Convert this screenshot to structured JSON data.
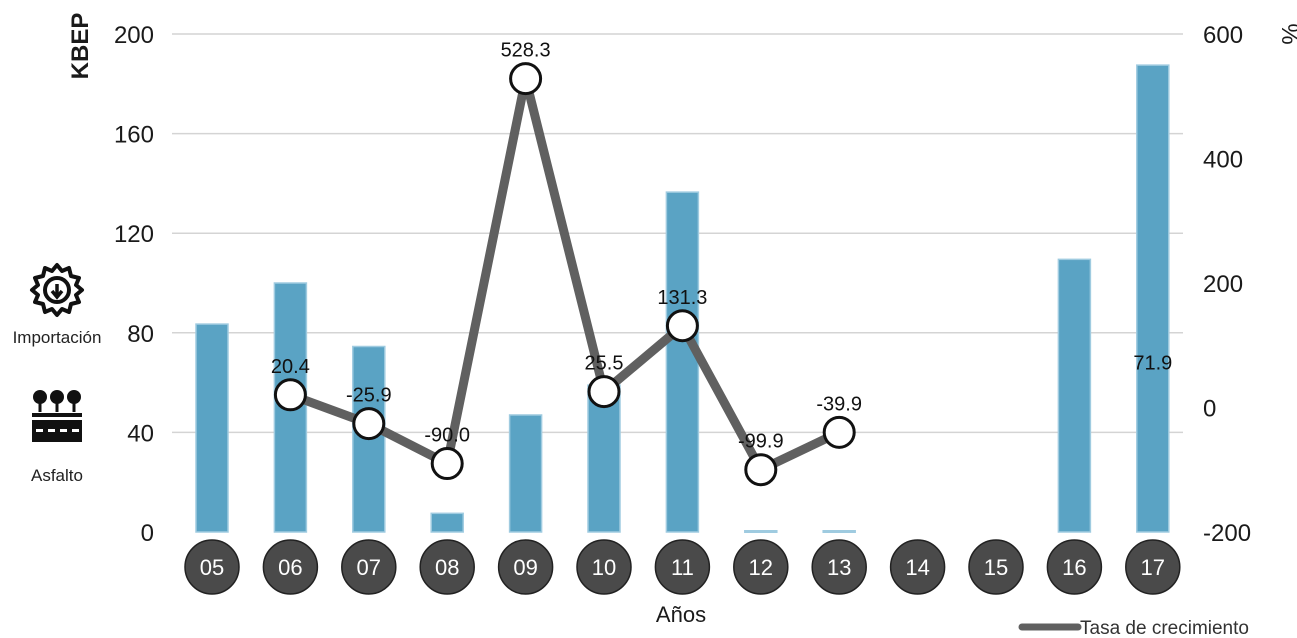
{
  "chart_data": {
    "type": "bar",
    "categories": [
      "05",
      "06",
      "07",
      "08",
      "09",
      "10",
      "11",
      "12",
      "13",
      "14",
      "15",
      "16",
      "17"
    ],
    "series": [
      {
        "type": "bar",
        "axis": "left",
        "color": "#5aa3c4",
        "values": [
          83.5,
          100,
          74.5,
          7.5,
          47,
          59,
          136.5,
          0.5,
          0.5,
          null,
          null,
          109.5,
          187.5
        ]
      },
      {
        "name": "Tasa de crecimiento",
        "type": "line",
        "axis": "right",
        "color": "#606060",
        "values": [
          null,
          20.4,
          -25.9,
          -90.0,
          528.3,
          25.5,
          131.3,
          -99.9,
          -39.9,
          null,
          null,
          null,
          71.9
        ],
        "labels": [
          "",
          "20.4",
          "-25.9",
          "-90.0",
          "528.3",
          "25.5",
          "131.3",
          "-99.9",
          "-39.9",
          "",
          "",
          "",
          "71.9"
        ]
      }
    ],
    "ylabel": "KBEP",
    "y2label": "%",
    "xlabel": "Años",
    "ylim": [
      0,
      200
    ],
    "y2lim": [
      -200,
      600
    ],
    "yticks": [
      0,
      40,
      80,
      120,
      160,
      200
    ],
    "y2ticks": [
      -200,
      0,
      200,
      400,
      600
    ],
    "grid": true,
    "legend": "bottom-right"
  },
  "side": {
    "importacion_label": "Importación",
    "asfalto_label": "Asfalto",
    "importacion_icon": "gear-download-icon",
    "asfalto_icon": "asphalt-road-trees-icon"
  }
}
